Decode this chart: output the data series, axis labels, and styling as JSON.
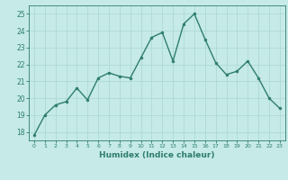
{
  "x": [
    0,
    1,
    2,
    3,
    4,
    5,
    6,
    7,
    8,
    9,
    10,
    11,
    12,
    13,
    14,
    15,
    16,
    17,
    18,
    19,
    20,
    21,
    22,
    23
  ],
  "y": [
    17.8,
    19.0,
    19.6,
    19.8,
    20.6,
    19.9,
    21.2,
    21.5,
    21.3,
    21.2,
    22.4,
    23.6,
    23.9,
    22.2,
    24.4,
    25.0,
    23.5,
    22.1,
    21.4,
    21.6,
    22.2,
    21.2,
    20.0,
    19.4
  ],
  "line_color": "#2e7d6e",
  "marker": "o",
  "marker_size": 2.0,
  "bg_color": "#c5eae7",
  "grid_color": "#aad6d2",
  "xlabel": "Humidex (Indice chaleur)",
  "xlabel_color": "#2e7d6e",
  "tick_color": "#2e7d6e",
  "ylim": [
    17.5,
    25.5
  ],
  "yticks": [
    18,
    19,
    20,
    21,
    22,
    23,
    24,
    25
  ],
  "xlim": [
    -0.5,
    23.5
  ],
  "xticks": [
    0,
    1,
    2,
    3,
    4,
    5,
    6,
    7,
    8,
    9,
    10,
    11,
    12,
    13,
    14,
    15,
    16,
    17,
    18,
    19,
    20,
    21,
    22,
    23
  ]
}
